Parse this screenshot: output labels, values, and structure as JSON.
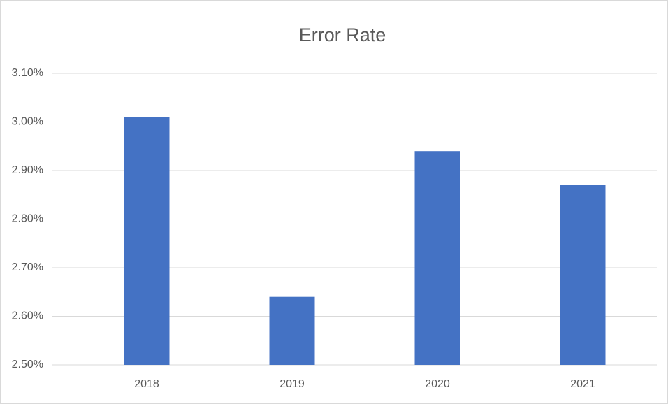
{
  "chart_data": {
    "type": "bar",
    "title": "Error Rate",
    "categories": [
      "2018",
      "2019",
      "2020",
      "2021"
    ],
    "values": [
      3.01,
      2.64,
      2.94,
      2.87
    ],
    "color": "#4472c4",
    "ylim": [
      2.5,
      3.1
    ],
    "yticks": [
      {
        "value": 2.5,
        "label": "2.50%"
      },
      {
        "value": 2.6,
        "label": "2.60%"
      },
      {
        "value": 2.7,
        "label": "2.70%"
      },
      {
        "value": 2.8,
        "label": "2.80%"
      },
      {
        "value": 2.9,
        "label": "2.90%"
      },
      {
        "value": 3.0,
        "label": "3.00%"
      },
      {
        "value": 3.1,
        "label": "3.10%"
      }
    ],
    "grid": true
  }
}
